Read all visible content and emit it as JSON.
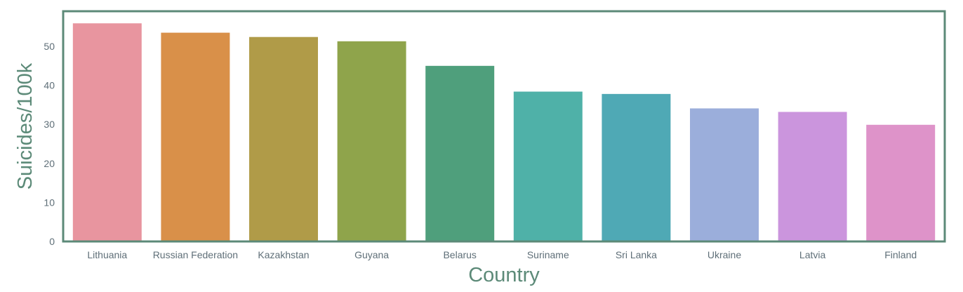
{
  "chart_data": {
    "type": "bar",
    "title": "",
    "xlabel": "Country",
    "ylabel": "Suicides/100k",
    "categories": [
      "Lithuania",
      "Russian Federation",
      "Kazakhstan",
      "Guyana",
      "Belarus",
      "Suriname",
      "Sri Lanka",
      "Ukraine",
      "Latvia",
      "Finland"
    ],
    "values": [
      55.9,
      53.5,
      52.4,
      51.3,
      45.0,
      38.4,
      37.8,
      34.1,
      33.2,
      29.9
    ],
    "colors": [
      "#e8959f",
      "#d99049",
      "#b09b48",
      "#8fa44b",
      "#4f9f7c",
      "#4fb1a8",
      "#4fa9b5",
      "#9baedb",
      "#cb95dd",
      "#de93c9"
    ],
    "yticks": [
      0,
      10,
      20,
      30,
      40,
      50
    ],
    "ylim": [
      0,
      59
    ],
    "grid": false,
    "frame_color": "#5c8a78",
    "axis_title_color": "#5c8a78",
    "tick_color": "#5f6f78"
  }
}
